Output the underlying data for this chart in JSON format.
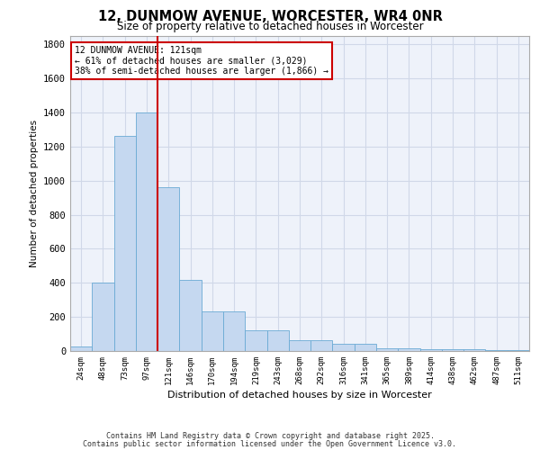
{
  "title": "12, DUNMOW AVENUE, WORCESTER, WR4 0NR",
  "subtitle": "Size of property relative to detached houses in Worcester",
  "xlabel": "Distribution of detached houses by size in Worcester",
  "ylabel": "Number of detached properties",
  "categories": [
    "24sqm",
    "48sqm",
    "73sqm",
    "97sqm",
    "121sqm",
    "146sqm",
    "170sqm",
    "194sqm",
    "219sqm",
    "243sqm",
    "268sqm",
    "292sqm",
    "316sqm",
    "341sqm",
    "365sqm",
    "389sqm",
    "414sqm",
    "438sqm",
    "462sqm",
    "487sqm",
    "511sqm"
  ],
  "values": [
    25,
    400,
    1265,
    1400,
    960,
    415,
    235,
    235,
    120,
    120,
    65,
    65,
    40,
    40,
    15,
    15,
    10,
    10,
    10,
    5,
    5
  ],
  "bar_color": "#c5d8f0",
  "bar_edge_color": "#6aaad4",
  "vline_color": "#cc0000",
  "vline_index": 4,
  "annotation_line1": "12 DUNMOW AVENUE: 121sqm",
  "annotation_line2": "← 61% of detached houses are smaller (3,029)",
  "annotation_line3": "38% of semi-detached houses are larger (1,866) →",
  "annotation_box_color": "#cc0000",
  "annotation_bg_color": "#ffffff",
  "ylim": [
    0,
    1850
  ],
  "yticks": [
    0,
    200,
    400,
    600,
    800,
    1000,
    1200,
    1400,
    1600,
    1800
  ],
  "grid_color": "#d0d8e8",
  "background_color": "#eef2fa",
  "footer_line1": "Contains HM Land Registry data © Crown copyright and database right 2025.",
  "footer_line2": "Contains public sector information licensed under the Open Government Licence v3.0."
}
